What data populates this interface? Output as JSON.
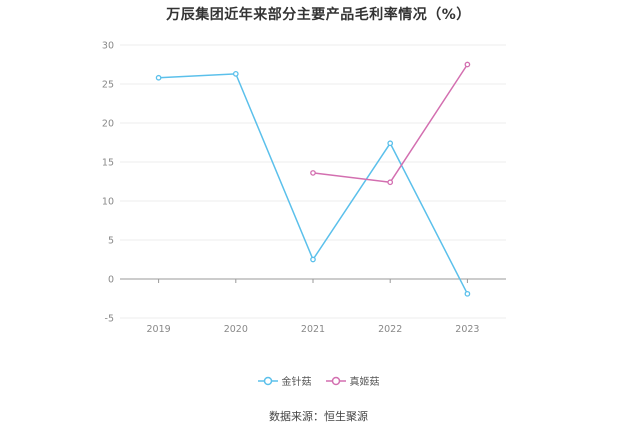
{
  "chart_data": {
    "type": "line",
    "title": "万辰集团近年来部分主要产品毛利率情况（%）",
    "x": [
      "2019",
      "2020",
      "2021",
      "2022",
      "2023"
    ],
    "ylim": [
      -5,
      30
    ],
    "yticks": [
      "30",
      "25",
      "20",
      "15",
      "10",
      "5",
      "0",
      "-5"
    ],
    "ytick_values": [
      30,
      25,
      20,
      15,
      10,
      5,
      0,
      -5
    ],
    "grid": true,
    "legend_position": "bottom",
    "series": [
      {
        "name": "金针菇",
        "color": "#5bc0eb",
        "values": [
          25.8,
          26.3,
          2.5,
          17.4,
          -1.9
        ]
      },
      {
        "name": "真姬菇",
        "color": "#d36fb0",
        "values": [
          null,
          null,
          13.6,
          12.4,
          27.5
        ]
      }
    ],
    "source": "数据来源：恒生聚源"
  }
}
